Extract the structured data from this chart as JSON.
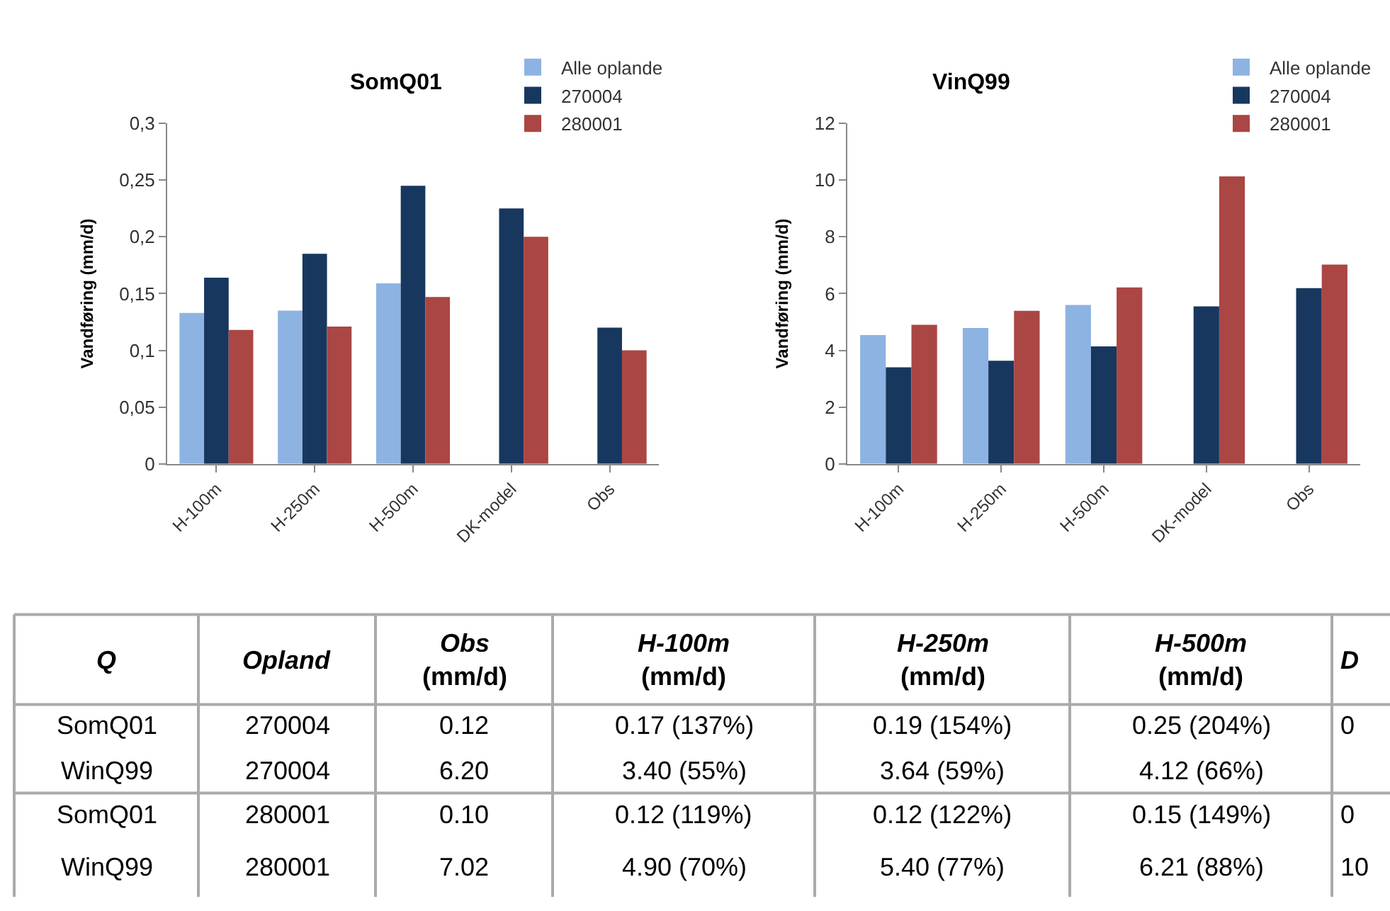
{
  "chart_data": [
    {
      "type": "bar",
      "title": "SomQ01",
      "ylabel": "Vandføring (mm/d)",
      "categories": [
        "H-100m",
        "H-250m",
        "H-500m",
        "DK-model",
        "Obs"
      ],
      "series": [
        {
          "name": "Alle oplande",
          "color": "#8db3e2",
          "values": [
            0.133,
            0.135,
            0.159,
            null,
            null
          ]
        },
        {
          "name": "270004",
          "color": "#17375e",
          "values": [
            0.164,
            0.185,
            0.245,
            0.225,
            0.12
          ]
        },
        {
          "name": "280001",
          "color": "#aa4643",
          "values": [
            0.118,
            0.121,
            0.147,
            0.2,
            0.1
          ]
        }
      ],
      "ylim": [
        0,
        0.3
      ],
      "yticks": [
        {
          "value": 0,
          "label": "0"
        },
        {
          "value": 0.05,
          "label": "0,05"
        },
        {
          "value": 0.1,
          "label": "0,1"
        },
        {
          "value": 0.15,
          "label": "0,15"
        },
        {
          "value": 0.2,
          "label": "0,2"
        },
        {
          "value": 0.25,
          "label": "0,25"
        },
        {
          "value": 0.3,
          "label": "0,3"
        }
      ],
      "legend": "top right"
    },
    {
      "type": "bar",
      "title": "VinQ99",
      "ylabel": "Vandføring (mm/d)",
      "categories": [
        "H-100m",
        "H-250m",
        "H-500m",
        "DK-model",
        "Obs"
      ],
      "series": [
        {
          "name": "Alle oplande",
          "color": "#8db3e2",
          "values": [
            4.54,
            4.79,
            5.6,
            null,
            null
          ]
        },
        {
          "name": "270004",
          "color": "#17375e",
          "values": [
            3.4,
            3.63,
            4.14,
            5.55,
            6.19
          ]
        },
        {
          "name": "280001",
          "color": "#aa4643",
          "values": [
            4.9,
            5.39,
            6.22,
            10.13,
            7.02
          ]
        }
      ],
      "ylim": [
        0,
        12
      ],
      "yticks": [
        0,
        2,
        4,
        6,
        8,
        10,
        12
      ],
      "legend": "top right"
    },
    {
      "type": "other",
      "annotations": [
        "Q",
        "Opland",
        "Obs (mm/d)",
        "H-100m (mm/d)",
        "H-250m (mm/d)",
        "H-500m (mm/d)",
        "D",
        "SomQ01",
        "270004",
        "0.12",
        "0.17 (137%)",
        "0.19 (154%)",
        "0.25 (204%)",
        "0",
        "WinQ99",
        "270004",
        "6.20",
        "3.40 (55%)",
        "3.64 (59%)",
        "4.12 (66%)",
        null,
        "SomQ01",
        "280001",
        "0.10",
        "0.12 (119%)",
        "0.12 (122%)",
        "0.15 (149%)",
        "0",
        "WinQ99",
        "280001",
        "7.02",
        "4.90 (70%)",
        "5.40 (77%)",
        "6.21 (88%)",
        "10"
      ]
    }
  ]
}
